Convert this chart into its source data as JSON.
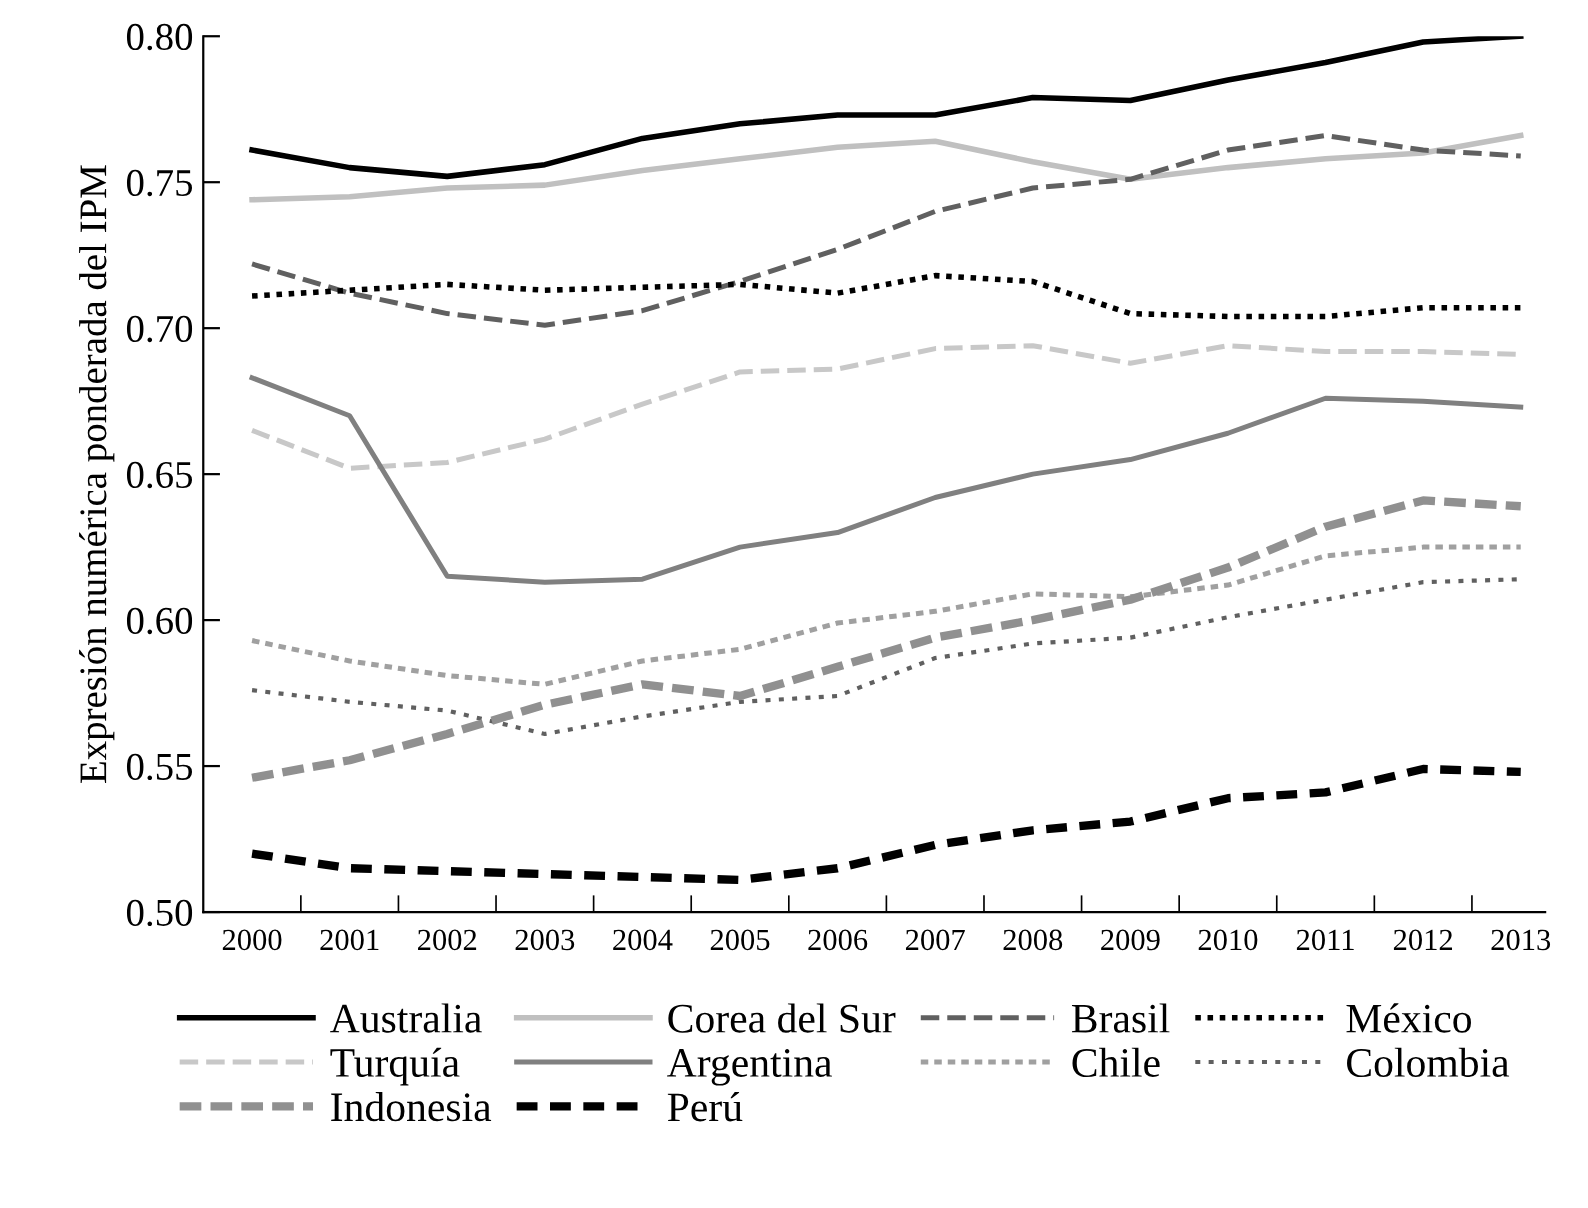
{
  "chart_data": {
    "type": "line",
    "ylabel": "Expresión numérica ponderada del IPM",
    "categories": [
      "2000",
      "2001",
      "2002",
      "2003",
      "2004",
      "2005",
      "2006",
      "2007",
      "2008",
      "2009",
      "2010",
      "2011",
      "2012",
      "2013"
    ],
    "ylim": [
      0.5,
      0.8
    ],
    "yticks": [
      {
        "value": 0.5,
        "label": "0.50"
      },
      {
        "value": 0.55,
        "label": "0.55"
      },
      {
        "value": 0.6,
        "label": "0.60"
      },
      {
        "value": 0.65,
        "label": "0.65"
      },
      {
        "value": 0.7,
        "label": "0.70"
      },
      {
        "value": 0.75,
        "label": "0.75"
      },
      {
        "value": 0.8,
        "label": "0.80"
      }
    ],
    "grid": false,
    "legend": "bottom",
    "marker": "none",
    "series": [
      {
        "name": "Australia",
        "color": "#000000",
        "line_style": "solid",
        "values": [
          0.761,
          0.755,
          0.752,
          0.756,
          0.765,
          0.77,
          0.773,
          0.773,
          0.779,
          0.778,
          0.785,
          0.791,
          0.798,
          0.8
        ]
      },
      {
        "name": "Corea del Sur",
        "color": "#c0c0c0",
        "line_style": "solid",
        "values": [
          0.744,
          0.745,
          0.748,
          0.749,
          0.754,
          0.758,
          0.762,
          0.764,
          0.757,
          0.751,
          0.755,
          0.758,
          0.76,
          0.766
        ]
      },
      {
        "name": "Brasil",
        "color": "#606060",
        "line_style": "dashed",
        "values": [
          0.722,
          0.712,
          0.705,
          0.701,
          0.706,
          0.716,
          0.727,
          0.74,
          0.748,
          0.751,
          0.761,
          0.766,
          0.761,
          0.759
        ]
      },
      {
        "name": "México",
        "color": "#000000",
        "line_style": "dotted",
        "values": [
          0.711,
          0.713,
          0.715,
          0.713,
          0.714,
          0.715,
          0.712,
          0.718,
          0.716,
          0.705,
          0.704,
          0.704,
          0.707,
          0.707
        ]
      },
      {
        "name": "Turquía",
        "color": "#c8c8c8",
        "line_style": "dashed",
        "values": [
          0.665,
          0.652,
          0.654,
          0.662,
          0.674,
          0.685,
          0.686,
          0.693,
          0.694,
          0.688,
          0.694,
          0.692,
          0.692,
          0.691
        ]
      },
      {
        "name": "Argentina",
        "color": "#808080",
        "line_style": "solid",
        "values": [
          0.683,
          0.67,
          0.615,
          0.613,
          0.614,
          0.625,
          0.63,
          0.642,
          0.65,
          0.655,
          0.664,
          0.676,
          0.675,
          0.673
        ]
      },
      {
        "name": "Chile",
        "color": "#a0a0a0",
        "line_style": "dotted",
        "values": [
          0.593,
          0.586,
          0.581,
          0.578,
          0.586,
          0.59,
          0.599,
          0.603,
          0.609,
          0.608,
          0.612,
          0.622,
          0.625,
          0.625
        ]
      },
      {
        "name": "Colombia",
        "color": "#606060",
        "line_style": "dotted",
        "values": [
          0.576,
          0.572,
          0.569,
          0.561,
          0.567,
          0.572,
          0.574,
          0.587,
          0.592,
          0.594,
          0.601,
          0.607,
          0.613,
          0.614
        ]
      },
      {
        "name": "Indonesia",
        "color": "#909090",
        "line_style": "dashed",
        "values": [
          0.546,
          0.552,
          0.561,
          0.571,
          0.578,
          0.574,
          0.584,
          0.594,
          0.6,
          0.607,
          0.618,
          0.632,
          0.641,
          0.639
        ]
      },
      {
        "name": "Perú",
        "color": "#000000",
        "line_style": "dashed",
        "values": [
          0.52,
          0.515,
          0.514,
          0.513,
          0.512,
          0.511,
          0.515,
          0.523,
          0.528,
          0.531,
          0.539,
          0.541,
          0.549,
          0.548
        ]
      }
    ]
  }
}
